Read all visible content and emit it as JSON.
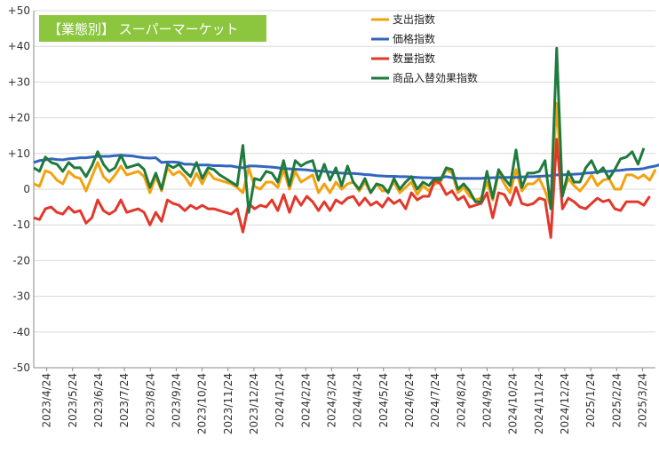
{
  "chart_data": {
    "type": "line",
    "title": "【業態別】 スーパーマーケット",
    "xlabel": "",
    "ylabel": "",
    "ylim": [
      -50,
      50
    ],
    "y_ticks": [
      "+50",
      "+40",
      "+30",
      "+20",
      "+10",
      "0",
      "-10",
      "-20",
      "-30",
      "-40",
      "-50"
    ],
    "grid": "horizontal",
    "legend_position": "top-right",
    "x_labels": [
      "2023/4/24",
      "2023/5/24",
      "2023/6/24",
      "2023/7/24",
      "2023/8/24",
      "2023/9/24",
      "2023/10/24",
      "2023/11/24",
      "2023/12/24",
      "2024/1/24",
      "2024/2/24",
      "2024/3/24",
      "2024/4/24",
      "2024/5/24",
      "2024/6/24",
      "2024/7/24",
      "2024/8/24",
      "2024/9/24",
      "2024/10/24",
      "2024/11/24",
      "2024/12/24",
      "2025/1/24",
      "2025/2/24",
      "2025/3/24"
    ],
    "series": [
      {
        "name": "支出指数",
        "color": "#f2a20f",
        "values": [
          1.5,
          0.8,
          5.2,
          4.5,
          2.5,
          1.5,
          5,
          3.5,
          3,
          -0.5,
          3.5,
          7.5,
          3.5,
          2,
          4,
          6.5,
          4,
          4.5,
          5,
          3.5,
          -1,
          3.5,
          -0.5,
          6,
          4,
          5,
          3.5,
          1,
          4.5,
          1.5,
          5,
          3,
          2.5,
          2,
          1.5,
          0.5,
          -1,
          6,
          0.8,
          0,
          2,
          2,
          0.5,
          5.5,
          0,
          5,
          2,
          3,
          4,
          -1,
          1.5,
          -1,
          2,
          0,
          1.5,
          2,
          -0.5,
          2,
          -1,
          1.5,
          -0.5,
          -0.5,
          2,
          -1,
          0.5,
          2,
          -1.5,
          1,
          -0.5,
          1.5,
          2,
          5.5,
          4.5,
          -1,
          0.5,
          -2,
          -3,
          -2.5,
          2,
          -3,
          4.5,
          1.5,
          -1,
          5.5,
          -0.5,
          1.5,
          1.5,
          3,
          -0.5,
          -5,
          24,
          -1.5,
          3,
          1,
          -0.5,
          1.5,
          4,
          1,
          2.5,
          3,
          0,
          0,
          4,
          4,
          3,
          4,
          2.5,
          5.5
        ]
      },
      {
        "name": "価格指数",
        "color": "#3266be",
        "values": [
          7.5,
          8,
          8.2,
          8.5,
          8.3,
          8.2,
          8.5,
          8.6,
          8.8,
          8.8,
          9,
          9.2,
          9.2,
          9.2,
          9.4,
          9.5,
          9.4,
          9.3,
          9,
          8.8,
          8.7,
          8.8,
          7.5,
          7.6,
          7.6,
          7.5,
          7,
          7,
          6.8,
          6.8,
          6.8,
          6.6,
          6.6,
          6.5,
          6.5,
          6.2,
          6,
          6.5,
          6.5,
          6.4,
          6.3,
          6.2,
          6,
          5.8,
          5.7,
          5.6,
          5.5,
          5.4,
          5.2,
          5.1,
          5,
          4.8,
          4.6,
          4.5,
          4.4,
          4.4,
          4.3,
          4.1,
          4,
          3.8,
          3.7,
          3.6,
          3.6,
          3.5,
          3.5,
          3.4,
          3.3,
          3.2,
          3.2,
          3.1,
          3.2,
          3.5,
          3.2,
          3,
          3,
          3,
          3,
          3,
          3.2,
          3.2,
          3.3,
          3.3,
          3.3,
          3.3,
          3.4,
          3.5,
          3.5,
          3.6,
          3.7,
          3.8,
          4,
          4,
          4.1,
          4.2,
          4.3,
          4.5,
          4.6,
          4.8,
          5,
          5,
          5.2,
          5.3,
          5.5,
          5.6,
          5.6,
          5.8,
          6.2,
          6.5,
          7
        ]
      },
      {
        "name": "数量指数",
        "color": "#e2382c",
        "values": [
          -8,
          -8.5,
          -5.5,
          -5,
          -6.5,
          -7,
          -5,
          -6.5,
          -6,
          -9.5,
          -8,
          -3,
          -6,
          -7,
          -6,
          -3,
          -6.5,
          -6,
          -5.5,
          -6.5,
          -10,
          -6.5,
          -9,
          -3,
          -4,
          -4.5,
          -6,
          -4.5,
          -5.5,
          -4.5,
          -5.5,
          -5.5,
          -6,
          -6.5,
          -7,
          -5.5,
          -12,
          -4,
          -5.5,
          -4.5,
          -5,
          -3,
          -6,
          -1.5,
          -6.5,
          -2,
          -4.5,
          -2,
          -3.5,
          -6,
          -3.5,
          -6,
          -3,
          -4,
          -2.5,
          -2,
          -4.5,
          -2.5,
          -4.5,
          -3.5,
          -5,
          -2.5,
          -4,
          -3,
          -5.5,
          -1,
          -3,
          -2,
          -2,
          2.5,
          1.5,
          -1.5,
          -0.5,
          -3,
          -2,
          -5,
          -4.5,
          -4,
          -1,
          -8,
          -1,
          -1.5,
          -4.5,
          0.5,
          -4,
          -4.5,
          -4,
          -2.5,
          -3,
          -13.5,
          14,
          -5.5,
          -2.5,
          -3.5,
          -5,
          -5.5,
          -4,
          -2.5,
          -3.5,
          -3,
          -5.5,
          -6,
          -3.5,
          -3.5,
          -3.5,
          -4.5,
          -2
        ]
      },
      {
        "name": "商品入替効果指数",
        "color": "#1f7a3e",
        "values": [
          6,
          5,
          9,
          7.5,
          7,
          5,
          7.5,
          6,
          6,
          3.5,
          6.5,
          10.5,
          7,
          5,
          6,
          9.5,
          6,
          6.5,
          7,
          5.5,
          0.5,
          4.5,
          0,
          7,
          6,
          7,
          5,
          3.5,
          7.5,
          3,
          6,
          5.5,
          4,
          3,
          2,
          1,
          12.3,
          -6.5,
          3,
          2.5,
          5,
          4.5,
          2,
          8,
          1,
          8,
          6.5,
          7.5,
          8,
          2.5,
          7,
          2.5,
          6,
          1,
          6.5,
          2,
          0,
          3,
          -1,
          1.5,
          1,
          -1,
          3,
          0,
          2,
          3.5,
          0,
          2,
          1,
          3,
          2.5,
          6,
          5.5,
          0,
          1.5,
          -0.5,
          -3.5,
          -3.5,
          5,
          -2.5,
          5.5,
          3,
          1,
          11,
          0.5,
          4.5,
          4.5,
          5,
          8,
          -5.5,
          39.5,
          -2,
          5,
          2,
          2,
          6,
          8,
          4.5,
          6,
          3,
          5.5,
          8.5,
          9,
          10.5,
          7,
          11.5
        ]
      }
    ]
  }
}
